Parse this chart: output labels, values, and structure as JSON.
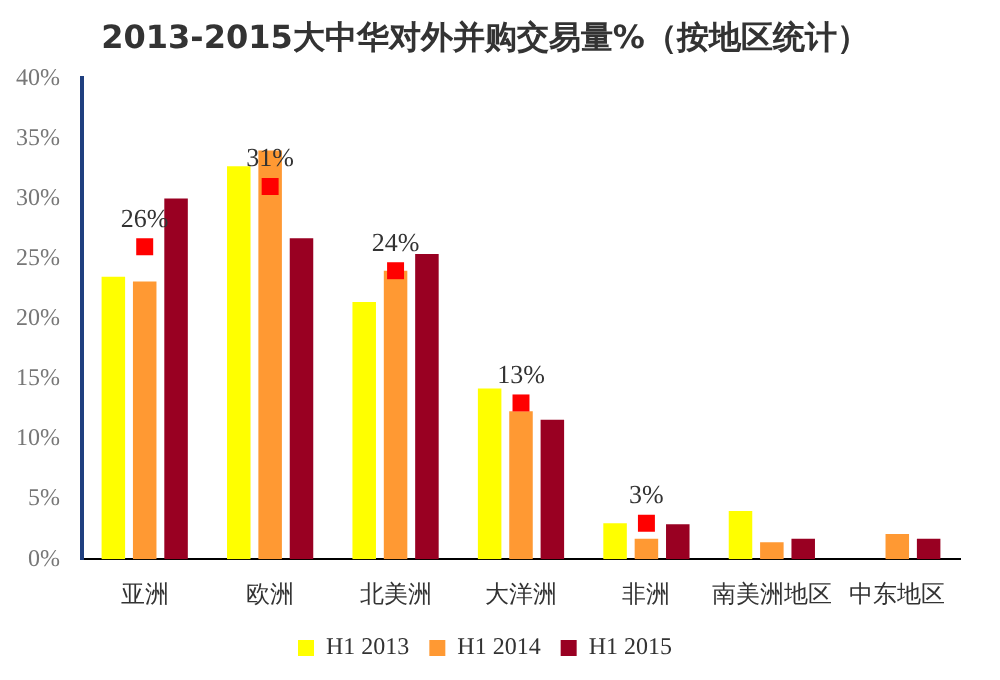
{
  "chart_data": {
    "type": "bar",
    "title": "2013-2015大中华对外并购交易量%（按地区统计）",
    "categories": [
      "亚洲",
      "欧洲",
      "北美洲",
      "大洋洲",
      "非洲",
      "南美洲地区",
      "中东地区"
    ],
    "series": [
      {
        "name": "H1 2013",
        "color": "#ffff00",
        "values": [
          23.5,
          32.7,
          21.4,
          14.2,
          3.0,
          4.0,
          null
        ]
      },
      {
        "name": "H1 2014",
        "color": "#ff9933",
        "values": [
          23.1,
          34.0,
          24.0,
          12.3,
          1.7,
          1.4,
          2.1
        ]
      },
      {
        "name": "H1 2015",
        "color": "#990022",
        "values": [
          30.0,
          26.7,
          25.4,
          11.6,
          2.9,
          1.7,
          1.7
        ]
      },
      {
        "type": "scatter",
        "marker": "square",
        "color": "#ff0000",
        "values": [
          26,
          31,
          24,
          13,
          3,
          null,
          null
        ],
        "value_labels": [
          "26%",
          "31%",
          "24%",
          "13%",
          "3%",
          null,
          null
        ]
      }
    ],
    "ylim": [
      0,
      40
    ],
    "yticks": [
      {
        "value": 0,
        "label": "0%"
      },
      {
        "value": 5,
        "label": "5%"
      },
      {
        "value": 10,
        "label": "10%"
      },
      {
        "value": 15,
        "label": "15%"
      },
      {
        "value": 20,
        "label": "20%"
      },
      {
        "value": 25,
        "label": "25%"
      },
      {
        "value": 30,
        "label": "30%"
      },
      {
        "value": 35,
        "label": "35%"
      },
      {
        "value": 40,
        "label": "40%"
      }
    ],
    "grid": false,
    "legend": "bottom"
  }
}
